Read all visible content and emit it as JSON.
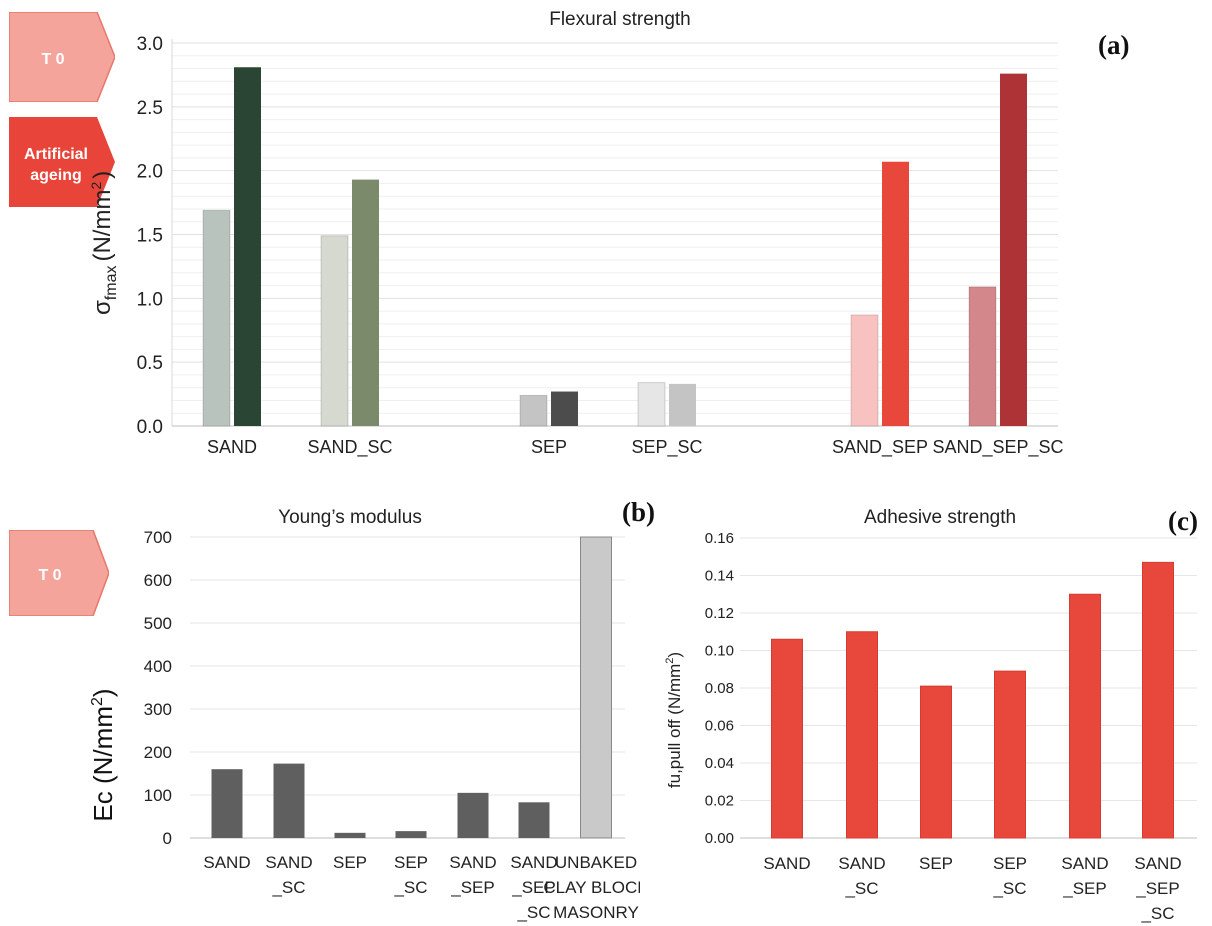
{
  "tags": {
    "t0": "T 0",
    "ageing_line1": "Artificial",
    "ageing_line2": "ageing",
    "t0_b": "T 0",
    "colors": {
      "t0": "#f5a49b",
      "ageing": "#e8443a"
    }
  },
  "chart_data": [
    {
      "panel": "(a)",
      "type": "bar",
      "title": "Flexural strength",
      "ylabel_main": "σ",
      "ylabel_sub": "fmax",
      "ylabel_unit": "(N/mm",
      "ylabel_sup": "2",
      "ylabel_close": ")",
      "ylim": [
        0,
        3.0
      ],
      "yticks": [
        "0.0",
        "0.5",
        "1.0",
        "1.5",
        "2.0",
        "2.5",
        "3.0"
      ],
      "categories": [
        "SAND",
        "SAND_SC",
        "SEP",
        "SEP_SC",
        "SAND_SEP",
        "SAND_SEP_SC"
      ],
      "series": [
        {
          "values": [
            1.69,
            1.49,
            0.24,
            0.34,
            0.87,
            1.09
          ]
        },
        {
          "values": [
            2.81,
            1.93,
            0.27,
            0.33,
            2.07,
            2.76
          ]
        }
      ],
      "colors": [
        [
          "#b9c3bd",
          "#2b4535"
        ],
        [
          "#d5d9d0",
          "#7b8a6b"
        ],
        [
          "#c4c4c4",
          "#4c4c4c"
        ],
        [
          "#e6e6e6",
          "#c4c4c4"
        ],
        [
          "#f8c2c0",
          "#e8473c"
        ],
        [
          "#d3878b",
          "#ad3337"
        ]
      ],
      "grid": true
    },
    {
      "panel": "(b)",
      "type": "bar",
      "title": "Young’s modulus",
      "ylabel": "Ec (N/mm",
      "ylabel_sup": "2",
      "ylabel_close": ")",
      "ylim": [
        0,
        700
      ],
      "yticks": [
        "0",
        "100",
        "200",
        "300",
        "400",
        "500",
        "600",
        "700"
      ],
      "categories": [
        [
          "SAND"
        ],
        [
          "SAND",
          "_SC"
        ],
        [
          "SEP"
        ],
        [
          "SEP",
          "_SC"
        ],
        [
          "SAND",
          "_SEP"
        ],
        [
          "SAND",
          "_SEP",
          "_SC"
        ],
        [
          "UNBAKED",
          "CLAY BLOCK",
          "MASONRY"
        ]
      ],
      "values": [
        160,
        173,
        12,
        16,
        105,
        83,
        700
      ],
      "colors": [
        "#5f5f5f",
        "#5f5f5f",
        "#5f5f5f",
        "#5f5f5f",
        "#5f5f5f",
        "#5f5f5f",
        "#c9c9c9"
      ],
      "grid": true
    },
    {
      "panel": "(c)",
      "type": "bar",
      "title": "Adhesive strength",
      "ylabel": "fu,pull off (N/mm",
      "ylabel_sup": "2",
      "ylabel_close": ")",
      "ylim": [
        0,
        0.16
      ],
      "yticks": [
        "0.00",
        "0.02",
        "0.04",
        "0.06",
        "0.08",
        "0.10",
        "0.12",
        "0.14",
        "0.16"
      ],
      "categories": [
        [
          "SAND"
        ],
        [
          "SAND",
          "_SC"
        ],
        [
          "SEP"
        ],
        [
          "SEP",
          "_SC"
        ],
        [
          "SAND",
          "_SEP"
        ],
        [
          "SAND",
          "_SEP",
          "_SC"
        ]
      ],
      "values": [
        0.106,
        0.11,
        0.081,
        0.089,
        0.13,
        0.147
      ],
      "color": "#e8473c",
      "grid": true
    }
  ]
}
